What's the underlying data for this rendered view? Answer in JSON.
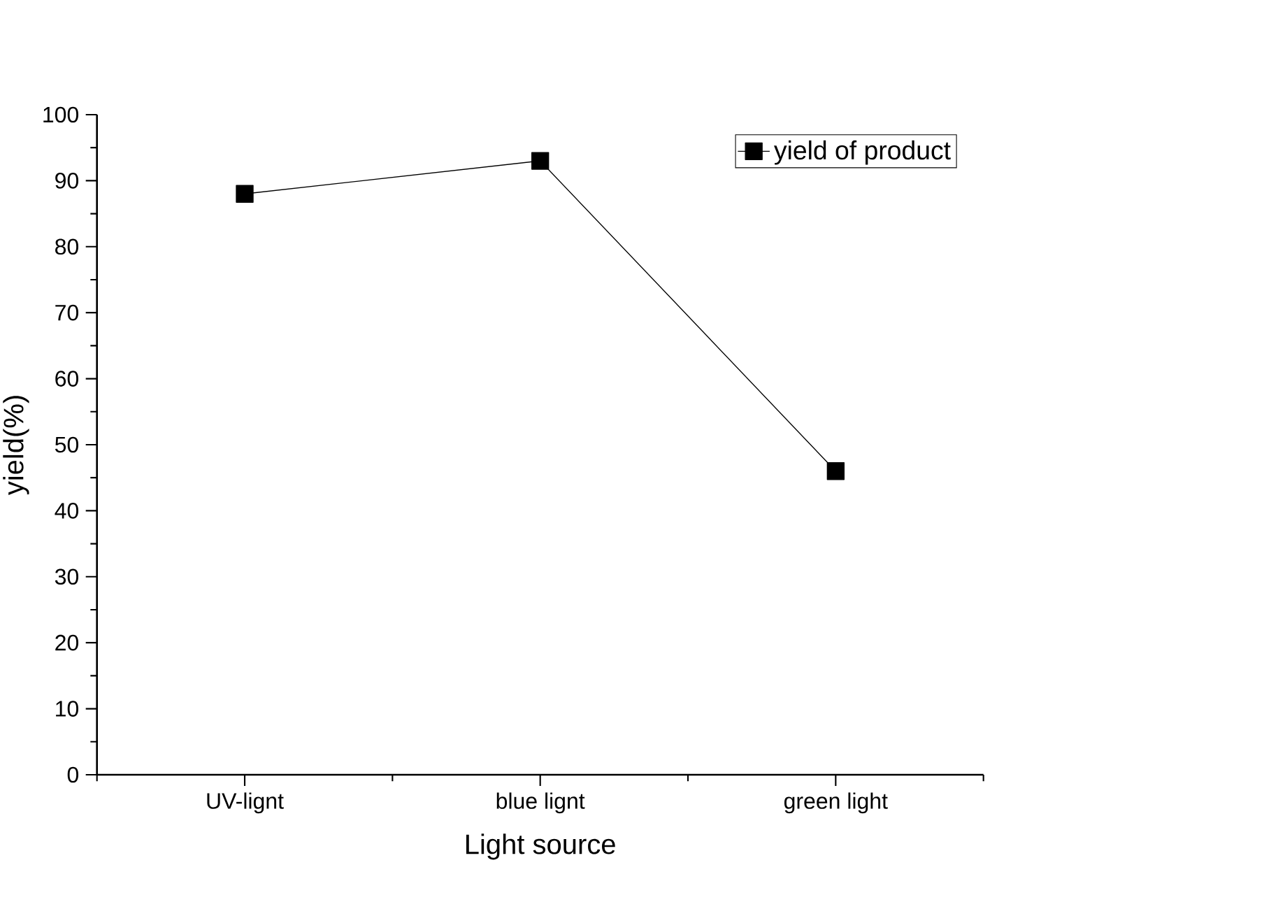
{
  "chart_data": {
    "type": "line",
    "xlabel": "Light source",
    "ylabel": "yield(%)",
    "categories": [
      "UV-lignt",
      "blue lignt",
      "green light"
    ],
    "series": [
      {
        "name": "yield of product",
        "color": "#000000",
        "values": [
          88,
          93,
          46
        ]
      }
    ],
    "ylim": [
      0,
      100
    ],
    "yticks": [
      0,
      10,
      20,
      30,
      40,
      50,
      60,
      70,
      80,
      90,
      100
    ],
    "grid": false,
    "legend": "top right",
    "marker": "square",
    "line_style": "solid"
  }
}
